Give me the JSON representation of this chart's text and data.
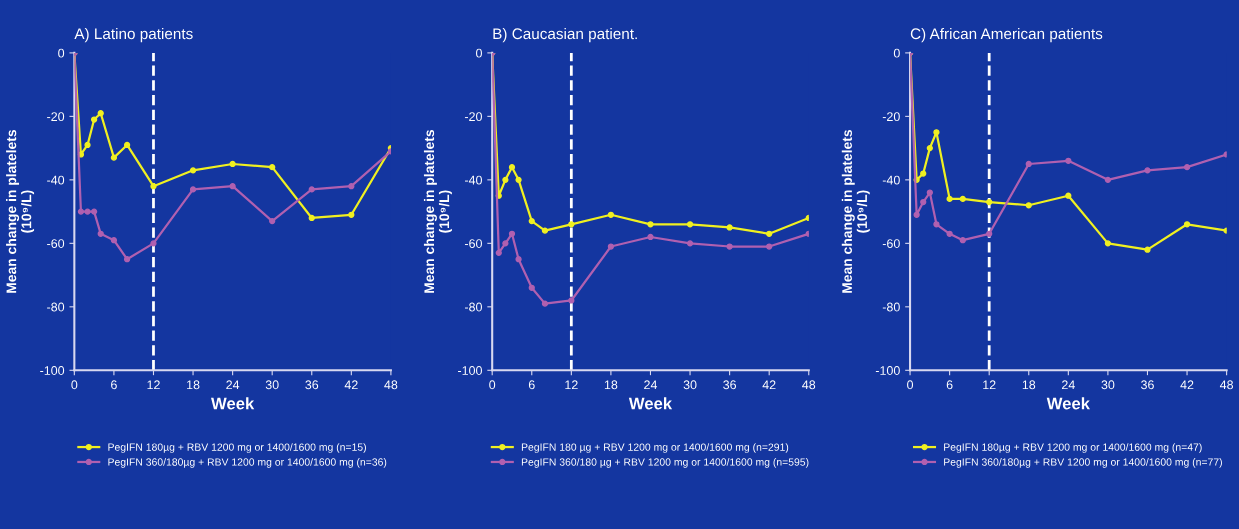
{
  "chart_data": [
    {
      "type": "line",
      "title": "A) Latino patients",
      "xlabel": "Week",
      "ylabel": "Mean change in platelets\n(10⁹/L)",
      "x": [
        0,
        1,
        2,
        3,
        4,
        6,
        8,
        12,
        18,
        24,
        30,
        36,
        42,
        48
      ],
      "xlim": [
        0,
        48
      ],
      "xticks": [
        0,
        6,
        12,
        18,
        24,
        30,
        36,
        42,
        48
      ],
      "ylim": [
        -100,
        0
      ],
      "yticks": [
        -100,
        -80,
        -60,
        -40,
        -20,
        0
      ],
      "marker": "circle",
      "legend": "bottom",
      "ref_lines": [
        {
          "axis": "x",
          "value": 12,
          "color": "#ffffff",
          "line_style": "dashed"
        }
      ],
      "series": [
        {
          "name": "PegIFN 180µg + RBV 1200 mg or 1400/1600 mg (n=15)",
          "color": "#f0f020",
          "values": [
            0,
            -32,
            -29,
            -21,
            -19,
            -33,
            -29,
            -42,
            -37,
            -35,
            -36,
            -52,
            -51,
            -30
          ]
        },
        {
          "name": "PegIFN 360/180µg + RBV 1200 mg or 1400/1600 mg (n=36)",
          "color": "#b060b0",
          "values": [
            0,
            -50,
            -50,
            -50,
            -57,
            -59,
            -65,
            -60,
            -43,
            -42,
            -53,
            -43,
            -42,
            -31
          ]
        }
      ]
    },
    {
      "type": "line",
      "title": "B) Caucasian patient.",
      "xlabel": "Week",
      "ylabel": "Mean change in platelets\n(10⁹/L)",
      "x": [
        0,
        1,
        2,
        3,
        4,
        6,
        8,
        12,
        18,
        24,
        30,
        36,
        42,
        48
      ],
      "xlim": [
        0,
        48
      ],
      "xticks": [
        0,
        6,
        12,
        18,
        24,
        30,
        36,
        42,
        48
      ],
      "ylim": [
        -100,
        0
      ],
      "yticks": [
        -100,
        -80,
        -60,
        -40,
        -20,
        0
      ],
      "marker": "circle",
      "legend": "bottom",
      "ref_lines": [
        {
          "axis": "x",
          "value": 12,
          "color": "#ffffff",
          "line_style": "dashed"
        }
      ],
      "series": [
        {
          "name": "PegIFN 180 µg + RBV 1200 mg or 1400/1600 mg (n=291)",
          "color": "#f0f020",
          "values": [
            0,
            -45,
            -40,
            -36,
            -40,
            -53,
            -56,
            -54,
            -51,
            -54,
            -54,
            -55,
            -57,
            -52
          ]
        },
        {
          "name": "PegIFN 360/180 µg + RBV 1200 mg or 1400/1600 mg (n=595)",
          "color": "#b060b0",
          "values": [
            0,
            -63,
            -60,
            -57,
            -65,
            -74,
            -79,
            -78,
            -61,
            -58,
            -60,
            -61,
            -61,
            -57
          ]
        }
      ]
    },
    {
      "type": "line",
      "title": "C) African American patients",
      "xlabel": "Week",
      "ylabel": "Mean change in platelets\n(10⁹/L)",
      "x": [
        0,
        1,
        2,
        3,
        4,
        6,
        8,
        12,
        18,
        24,
        30,
        36,
        42,
        48
      ],
      "xlim": [
        0,
        48
      ],
      "xticks": [
        0,
        6,
        12,
        18,
        24,
        30,
        36,
        42,
        48
      ],
      "ylim": [
        -100,
        0
      ],
      "yticks": [
        -100,
        -80,
        -60,
        -40,
        -20,
        0
      ],
      "marker": "circle",
      "legend": "bottom",
      "ref_lines": [
        {
          "axis": "x",
          "value": 12,
          "color": "#ffffff",
          "line_style": "dashed"
        }
      ],
      "series": [
        {
          "name": "PegIFN 180µg + RBV 1200 mg or 1400/1600 mg (n=47)",
          "color": "#f0f020",
          "values": [
            0,
            -40,
            -38,
            -30,
            -25,
            -46,
            -46,
            -47,
            -48,
            -45,
            -60,
            -62,
            -54,
            -56
          ]
        },
        {
          "name": "PegIFN 360/180µg + RBV 1200 mg or 1400/1600 mg (n=77)",
          "color": "#b060b0",
          "values": [
            0,
            -51,
            -47,
            -44,
            -54,
            -57,
            -59,
            -57,
            -35,
            -34,
            -40,
            -37,
            -36,
            -32
          ]
        }
      ]
    }
  ]
}
